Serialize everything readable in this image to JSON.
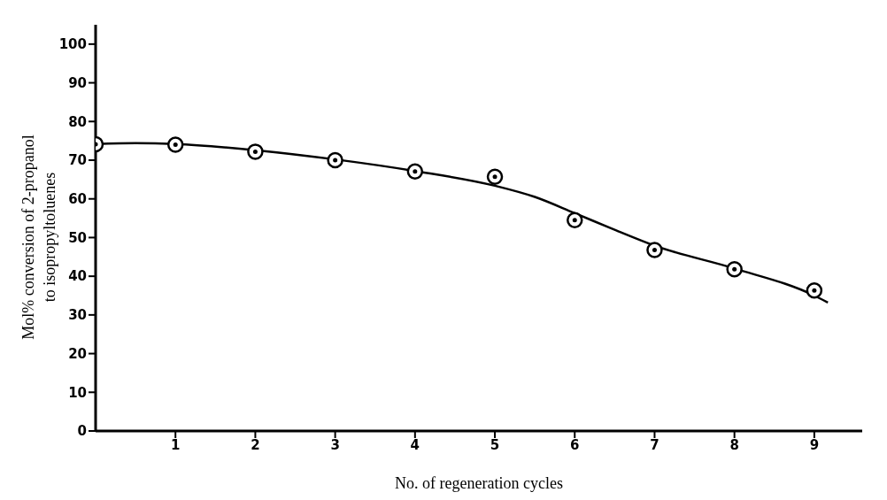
{
  "chart_data": {
    "type": "scatter",
    "xlabel": "No. of regeneration cycles",
    "ylabel": "Mol% conversion of 2-propanol\nto isopropyltoluenes",
    "xlim": [
      0,
      9.6
    ],
    "xticks": [
      1,
      2,
      3,
      4,
      5,
      6,
      7,
      8,
      9
    ],
    "ylim": [
      0,
      105
    ],
    "yticks": [
      0,
      10,
      20,
      30,
      40,
      50,
      60,
      70,
      80,
      90,
      100
    ],
    "grid": false,
    "legend": false,
    "line_style": "solid",
    "series": [
      {
        "color": "#000000",
        "marker": "circle",
        "x": [
          0,
          1,
          2,
          3,
          4,
          5,
          6,
          7,
          8,
          9
        ],
        "values": [
          74.1,
          74,
          72.2,
          70,
          67.1,
          65.7,
          54.5,
          46.8,
          41.8,
          36.3
        ]
      },
      {
        "type": "line",
        "color": "#000000",
        "marker": "none",
        "x": [
          0,
          0.5,
          1,
          2,
          3,
          4,
          5,
          5.5,
          6,
          6.5,
          7,
          8,
          9,
          9.17
        ],
        "values": [
          74.2,
          74.4,
          74.2,
          72.6,
          70.2,
          67.2,
          63.4,
          60.5,
          56.3,
          52,
          47.9,
          42,
          35,
          33.2
        ]
      }
    ]
  }
}
